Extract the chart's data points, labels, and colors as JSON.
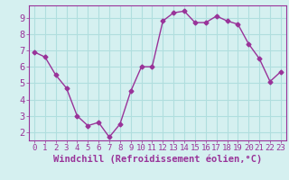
{
  "x": [
    0,
    1,
    2,
    3,
    4,
    5,
    6,
    7,
    8,
    9,
    10,
    11,
    12,
    13,
    14,
    15,
    16,
    17,
    18,
    19,
    20,
    21,
    22,
    23
  ],
  "y": [
    6.9,
    6.6,
    5.5,
    4.7,
    3.0,
    2.4,
    2.6,
    1.7,
    2.5,
    4.5,
    6.0,
    6.0,
    8.8,
    9.3,
    9.4,
    8.7,
    8.7,
    9.1,
    8.8,
    8.6,
    7.4,
    6.5,
    5.1,
    5.7
  ],
  "line_color": "#993399",
  "marker": "D",
  "markersize": 2.5,
  "linewidth": 1.0,
  "bg_color": "#d5f0f0",
  "grid_color": "#b0dede",
  "xlabel": "Windchill (Refroidissement éolien,°C)",
  "xlabel_color": "#993399",
  "tick_color": "#993399",
  "xlim": [
    -0.5,
    23.5
  ],
  "ylim": [
    1.5,
    9.75
  ],
  "yticks": [
    2,
    3,
    4,
    5,
    6,
    7,
    8,
    9
  ],
  "xticks": [
    0,
    1,
    2,
    3,
    4,
    5,
    6,
    7,
    8,
    9,
    10,
    11,
    12,
    13,
    14,
    15,
    16,
    17,
    18,
    19,
    20,
    21,
    22,
    23
  ],
  "xtick_labels": [
    "0",
    "1",
    "2",
    "3",
    "4",
    "5",
    "6",
    "7",
    "8",
    "9",
    "10",
    "11",
    "12",
    "13",
    "14",
    "15",
    "16",
    "17",
    "18",
    "19",
    "20",
    "21",
    "22",
    "23"
  ],
  "font_size": 6.5,
  "xlabel_fontsize": 7.5
}
